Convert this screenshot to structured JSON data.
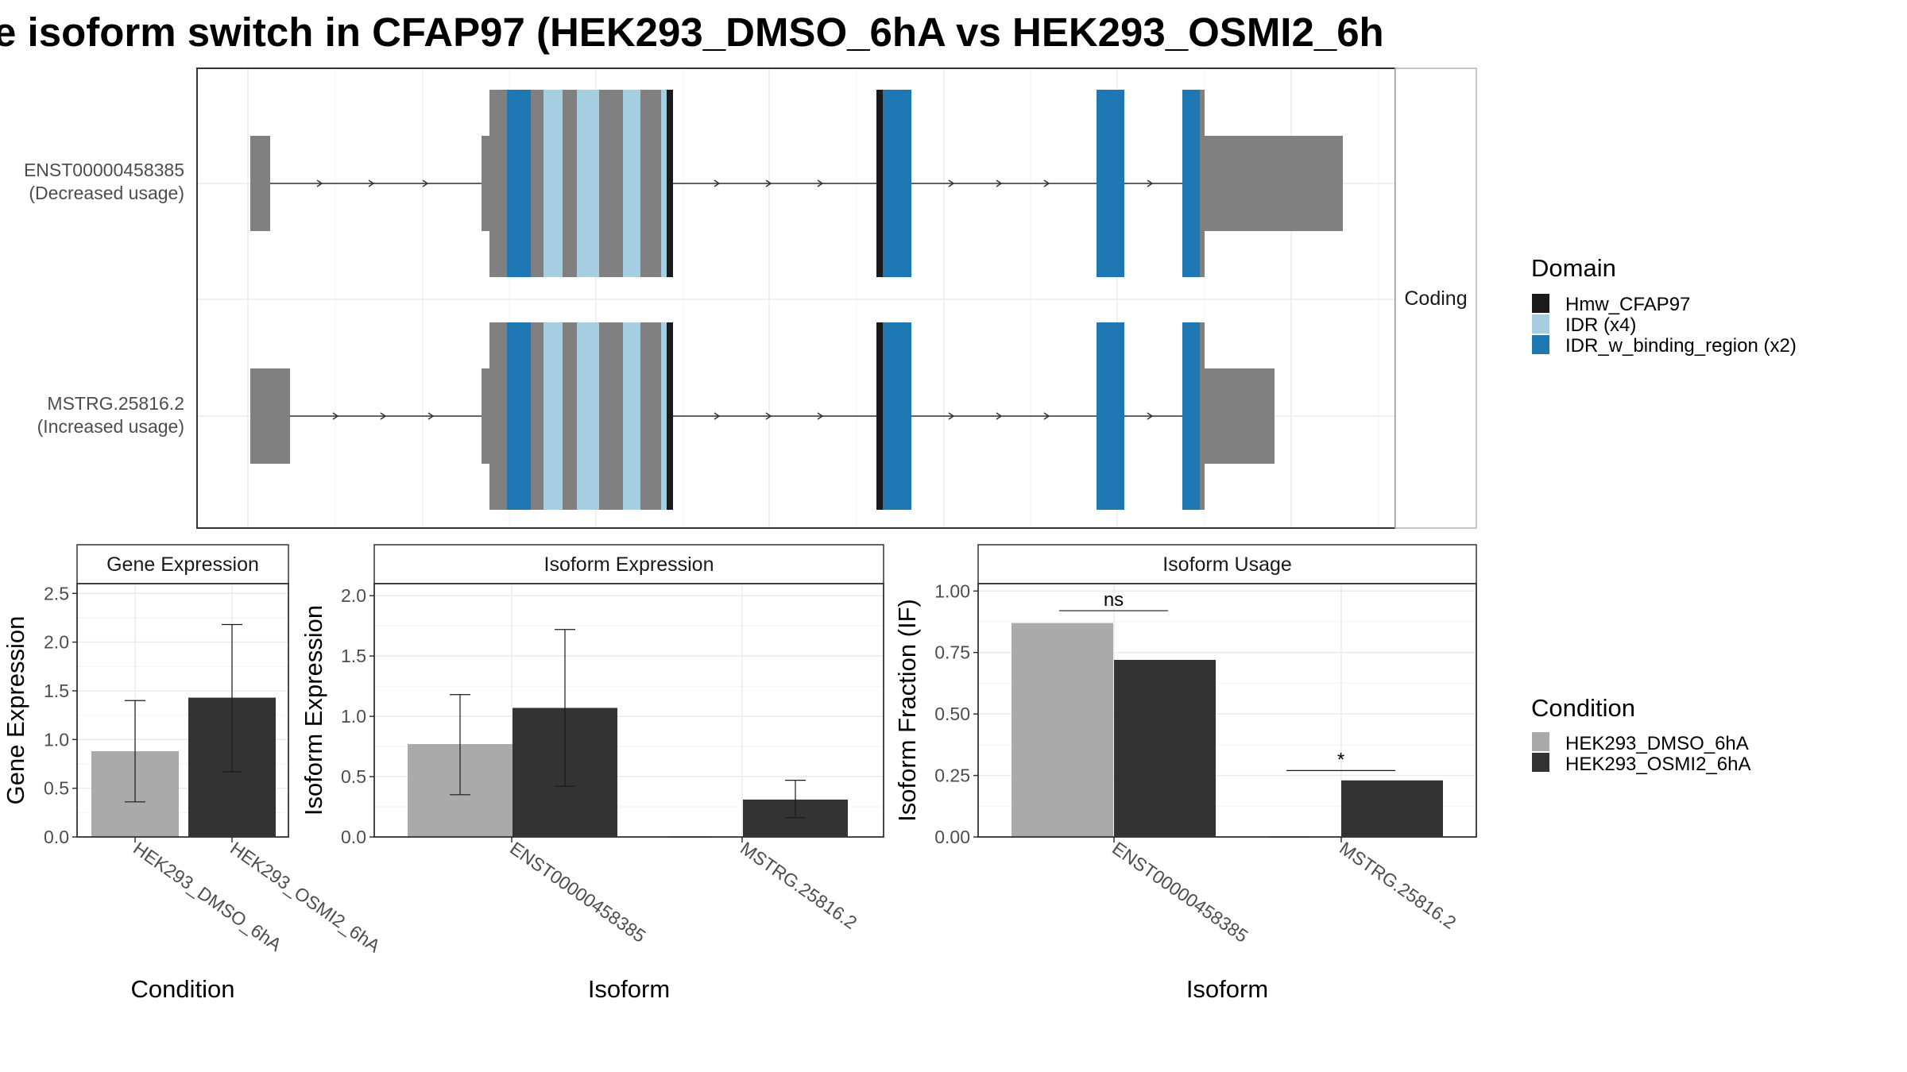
{
  "title": "e isoform switch in CFAP97 (HEK293_DMSO_6hA vs HEK293_OSMI2_6h",
  "colors": {
    "utr": "#808080",
    "Hmw_CFAP97": "#1a1a1a",
    "IDR": "#a6cee3",
    "IDR_w_binding_region": "#1f78b4",
    "HEK293_DMSO_6hA": "#aaaaaa",
    "HEK293_OSMI2_6hA": "#333333",
    "grid": "#ebebeb",
    "panel_border": "#333333"
  },
  "structure": {
    "facet_label": "Coding",
    "isoforms": [
      {
        "id": "ENST00000458385",
        "usage": "(Decreased usage)"
      },
      {
        "id": "MSTRG.25816.2",
        "usage": "(Increased usage)"
      }
    ],
    "legend": {
      "title": "Domain",
      "items": [
        {
          "label": "Hmw_CFAP97",
          "color_key": "Hmw_CFAP97"
        },
        {
          "label": "IDR (x4)",
          "color_key": "IDR"
        },
        {
          "label": "IDR_w_binding_region (x2)",
          "color_key": "IDR_w_binding_region"
        }
      ]
    }
  },
  "condition_legend": {
    "title": "Condition",
    "items": [
      {
        "label": "HEK293_DMSO_6hA",
        "color_key": "HEK293_DMSO_6hA"
      },
      {
        "label": "HEK293_OSMI2_6hA",
        "color_key": "HEK293_OSMI2_6hA"
      }
    ]
  },
  "chart_data": [
    {
      "type": "bar",
      "title": "Gene Expression",
      "xlabel": "Condition",
      "ylabel": "Gene Expression",
      "ylim": [
        0,
        2.6
      ],
      "yticks": [
        "0.0",
        "0.5",
        "1.0",
        "1.5",
        "2.0",
        "2.5"
      ],
      "categories": [
        "HEK293_DMSO_6hA",
        "HEK293_OSMI2_6hA"
      ],
      "series": [
        {
          "name": "HEK293_DMSO_6hA",
          "values": [
            0.88,
            null
          ],
          "err_low": [
            0.36,
            null
          ],
          "err_high": [
            1.4,
            null
          ]
        },
        {
          "name": "HEK293_OSMI2_6hA",
          "values": [
            null,
            1.43
          ],
          "err_low": [
            null,
            0.67
          ],
          "err_high": [
            null,
            2.18
          ]
        }
      ]
    },
    {
      "type": "bar",
      "title": "Isoform Expression",
      "xlabel": "Isoform",
      "ylabel": "Isoform Expression",
      "ylim": [
        0,
        2.1
      ],
      "yticks": [
        "0.0",
        "0.5",
        "1.0",
        "1.5",
        "2.0"
      ],
      "categories": [
        "ENST00000458385",
        "MSTRG.25816.2"
      ],
      "series": [
        {
          "name": "HEK293_DMSO_6hA",
          "values": [
            0.77,
            0.0
          ],
          "err_low": [
            0.35,
            0.0
          ],
          "err_high": [
            1.18,
            0.0
          ]
        },
        {
          "name": "HEK293_OSMI2_6hA",
          "values": [
            1.07,
            0.31
          ],
          "err_low": [
            0.42,
            0.16
          ],
          "err_high": [
            1.72,
            0.47
          ]
        }
      ]
    },
    {
      "type": "bar",
      "title": "Isoform Usage",
      "xlabel": "Isoform",
      "ylabel": "Isoform Fraction (IF)",
      "ylim": [
        0,
        1.03
      ],
      "yticks": [
        "0.00",
        "0.25",
        "0.50",
        "0.75",
        "1.00"
      ],
      "categories": [
        "ENST00000458385",
        "MSTRG.25816.2"
      ],
      "series": [
        {
          "name": "HEK293_DMSO_6hA",
          "values": [
            0.87,
            0.0
          ]
        },
        {
          "name": "HEK293_OSMI2_6hA",
          "values": [
            0.72,
            0.23
          ]
        }
      ],
      "annotations": [
        {
          "category": "ENST00000458385",
          "label": "ns",
          "y": 0.92
        },
        {
          "category": "MSTRG.25816.2",
          "label": "*",
          "y": 0.27
        }
      ]
    }
  ]
}
